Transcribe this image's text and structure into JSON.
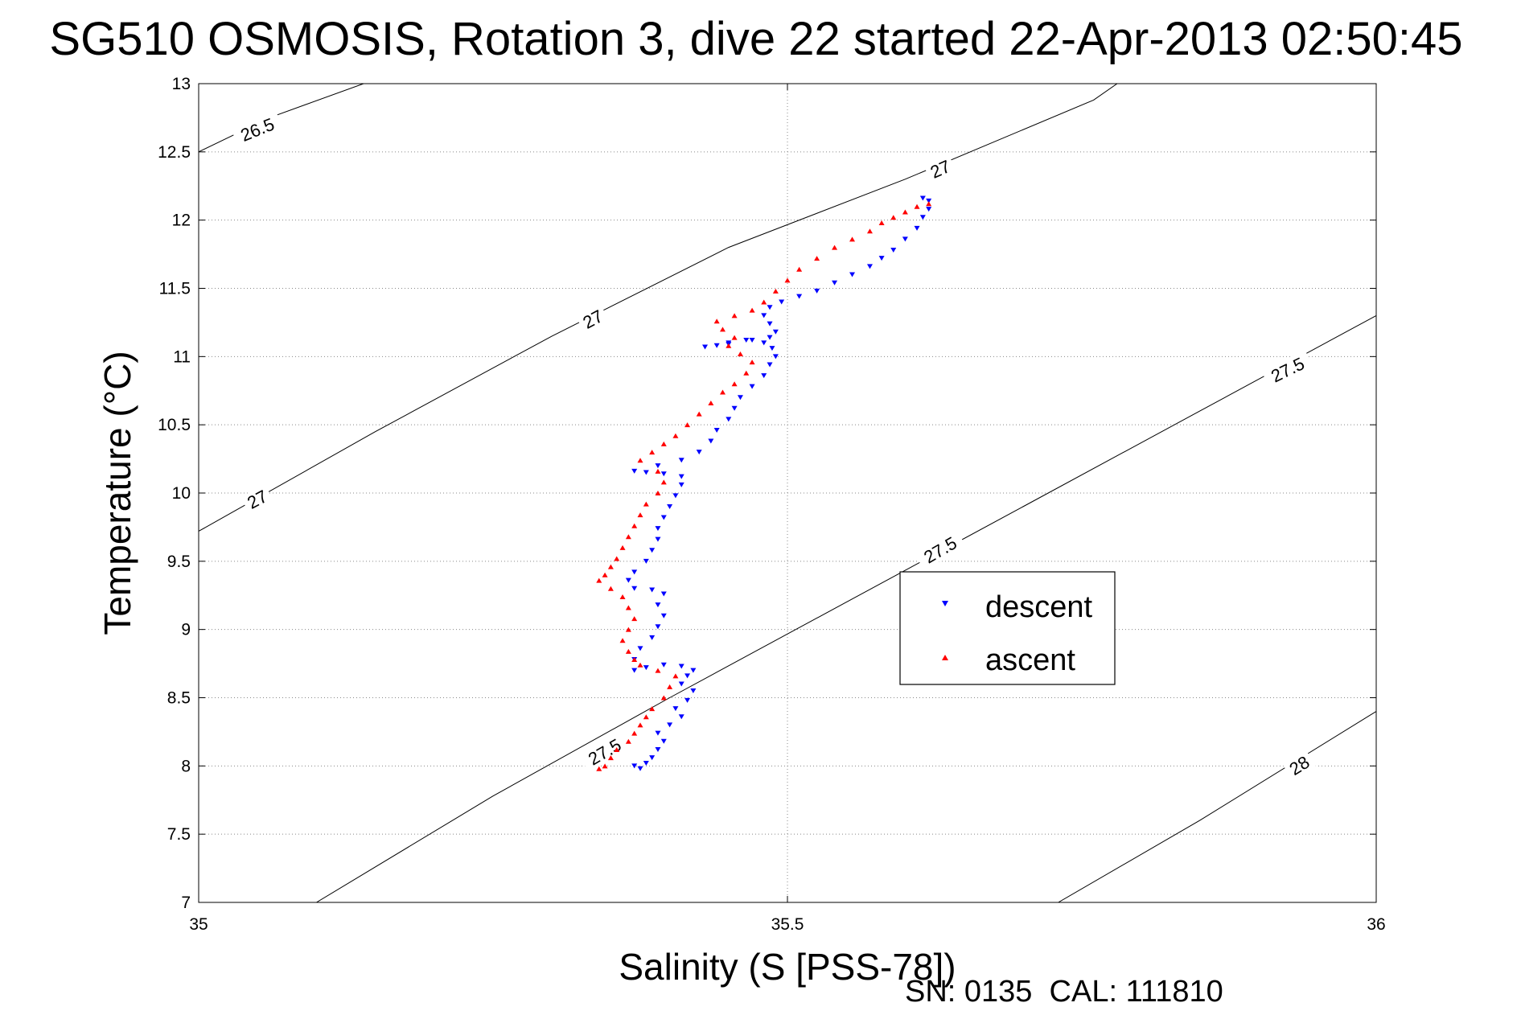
{
  "chart_data": {
    "type": "scatter",
    "title": "SG510 OSMOSIS, Rotation 3, dive 22 started 22-Apr-2013 02:50:45",
    "xlabel": "Salinity (S [PSS-78])",
    "ylabel": "Temperature (°C)",
    "xlim": [
      35,
      36
    ],
    "ylim": [
      7,
      13
    ],
    "xticks": [
      35,
      35.5,
      36
    ],
    "xtick_labels": [
      "35",
      "35.5",
      "36"
    ],
    "yticks": [
      7,
      7.5,
      8,
      8.5,
      9,
      9.5,
      10,
      10.5,
      11,
      11.5,
      12,
      12.5,
      13
    ],
    "ytick_labels": [
      "7",
      "7.5",
      "8",
      "8.5",
      "9",
      "9.5",
      "10",
      "10.5",
      "11",
      "11.5",
      "12",
      "12.5",
      "13"
    ],
    "grid": true,
    "legend_position": "lower-right",
    "footer": "SN: 0135  CAL: 111810",
    "series": [
      {
        "name": "descent",
        "color": "#0000ff",
        "marker": "triangle-down",
        "points": [
          [
            35.375,
            7.98
          ],
          [
            35.37,
            8.0
          ],
          [
            35.38,
            8.02
          ],
          [
            35.385,
            8.06
          ],
          [
            35.39,
            8.12
          ],
          [
            35.395,
            8.18
          ],
          [
            35.39,
            8.24
          ],
          [
            35.4,
            8.3
          ],
          [
            35.41,
            8.36
          ],
          [
            35.405,
            8.42
          ],
          [
            35.415,
            8.48
          ],
          [
            35.42,
            8.55
          ],
          [
            35.41,
            8.6
          ],
          [
            35.415,
            8.66
          ],
          [
            35.42,
            8.7
          ],
          [
            35.41,
            8.73
          ],
          [
            35.395,
            8.74
          ],
          [
            35.38,
            8.72
          ],
          [
            35.37,
            8.7
          ],
          [
            35.37,
            8.78
          ],
          [
            35.375,
            8.86
          ],
          [
            35.385,
            8.94
          ],
          [
            35.39,
            9.02
          ],
          [
            35.395,
            9.1
          ],
          [
            35.39,
            9.18
          ],
          [
            35.395,
            9.26
          ],
          [
            35.385,
            9.29
          ],
          [
            35.37,
            9.3
          ],
          [
            35.365,
            9.36
          ],
          [
            35.37,
            9.42
          ],
          [
            35.38,
            9.5
          ],
          [
            35.385,
            9.58
          ],
          [
            35.39,
            9.66
          ],
          [
            35.39,
            9.74
          ],
          [
            35.395,
            9.82
          ],
          [
            35.4,
            9.9
          ],
          [
            35.405,
            9.98
          ],
          [
            35.41,
            10.06
          ],
          [
            35.41,
            10.12
          ],
          [
            35.395,
            10.14
          ],
          [
            35.38,
            10.15
          ],
          [
            35.37,
            10.16
          ],
          [
            35.39,
            10.2
          ],
          [
            35.41,
            10.24
          ],
          [
            35.425,
            10.3
          ],
          [
            35.435,
            10.38
          ],
          [
            35.44,
            10.46
          ],
          [
            35.45,
            10.54
          ],
          [
            35.455,
            10.62
          ],
          [
            35.46,
            10.7
          ],
          [
            35.47,
            10.78
          ],
          [
            35.48,
            10.86
          ],
          [
            35.485,
            10.94
          ],
          [
            35.49,
            11.0
          ],
          [
            35.487,
            11.06
          ],
          [
            35.48,
            11.1
          ],
          [
            35.465,
            11.12
          ],
          [
            35.45,
            11.1
          ],
          [
            35.44,
            11.08
          ],
          [
            35.43,
            11.07
          ],
          [
            35.45,
            11.09
          ],
          [
            35.47,
            11.12
          ],
          [
            35.485,
            11.14
          ],
          [
            35.49,
            11.18
          ],
          [
            35.485,
            11.24
          ],
          [
            35.48,
            11.3
          ],
          [
            35.485,
            11.36
          ],
          [
            35.495,
            11.4
          ],
          [
            35.51,
            11.44
          ],
          [
            35.525,
            11.48
          ],
          [
            35.54,
            11.54
          ],
          [
            35.555,
            11.6
          ],
          [
            35.57,
            11.66
          ],
          [
            35.58,
            11.72
          ],
          [
            35.59,
            11.78
          ],
          [
            35.6,
            11.86
          ],
          [
            35.61,
            11.94
          ],
          [
            35.615,
            12.02
          ],
          [
            35.62,
            12.08
          ],
          [
            35.62,
            12.14
          ],
          [
            35.615,
            12.16
          ]
        ]
      },
      {
        "name": "ascent",
        "color": "#ff0000",
        "marker": "triangle-up",
        "points": [
          [
            35.62,
            12.12
          ],
          [
            35.61,
            12.1
          ],
          [
            35.6,
            12.06
          ],
          [
            35.59,
            12.02
          ],
          [
            35.58,
            11.98
          ],
          [
            35.57,
            11.92
          ],
          [
            35.555,
            11.86
          ],
          [
            35.54,
            11.8
          ],
          [
            35.525,
            11.72
          ],
          [
            35.51,
            11.64
          ],
          [
            35.5,
            11.56
          ],
          [
            35.49,
            11.48
          ],
          [
            35.48,
            11.4
          ],
          [
            35.47,
            11.34
          ],
          [
            35.455,
            11.3
          ],
          [
            35.44,
            11.26
          ],
          [
            35.445,
            11.2
          ],
          [
            35.455,
            11.14
          ],
          [
            35.45,
            11.08
          ],
          [
            35.46,
            11.02
          ],
          [
            35.47,
            10.96
          ],
          [
            35.465,
            10.88
          ],
          [
            35.455,
            10.8
          ],
          [
            35.445,
            10.74
          ],
          [
            35.435,
            10.66
          ],
          [
            35.425,
            10.58
          ],
          [
            35.415,
            10.5
          ],
          [
            35.405,
            10.42
          ],
          [
            35.395,
            10.36
          ],
          [
            35.385,
            10.3
          ],
          [
            35.375,
            10.24
          ],
          [
            35.39,
            10.16
          ],
          [
            35.395,
            10.08
          ],
          [
            35.39,
            10.0
          ],
          [
            35.38,
            9.92
          ],
          [
            35.375,
            9.84
          ],
          [
            35.37,
            9.76
          ],
          [
            35.365,
            9.68
          ],
          [
            35.36,
            9.6
          ],
          [
            35.355,
            9.52
          ],
          [
            35.35,
            9.46
          ],
          [
            35.345,
            9.4
          ],
          [
            35.34,
            9.36
          ],
          [
            35.35,
            9.3
          ],
          [
            35.36,
            9.24
          ],
          [
            35.365,
            9.16
          ],
          [
            35.37,
            9.08
          ],
          [
            35.365,
            9.0
          ],
          [
            35.36,
            8.92
          ],
          [
            35.365,
            8.84
          ],
          [
            35.37,
            8.78
          ],
          [
            35.375,
            8.74
          ],
          [
            35.39,
            8.7
          ],
          [
            35.405,
            8.66
          ],
          [
            35.4,
            8.58
          ],
          [
            35.395,
            8.5
          ],
          [
            35.385,
            8.42
          ],
          [
            35.38,
            8.36
          ],
          [
            35.375,
            8.3
          ],
          [
            35.37,
            8.24
          ],
          [
            35.365,
            8.18
          ],
          [
            35.355,
            8.12
          ],
          [
            35.35,
            8.06
          ],
          [
            35.345,
            8.0
          ],
          [
            35.34,
            7.98
          ]
        ]
      }
    ],
    "contours": [
      {
        "level": "26.5",
        "points": [
          [
            35.0,
            12.5
          ],
          [
            35.06,
            12.75
          ],
          [
            35.14,
            13.0
          ]
        ],
        "labels": [
          {
            "text": "26.5",
            "x": 35.05,
            "y": 12.66,
            "angle": -22
          }
        ]
      },
      {
        "level": "27",
        "points": [
          [
            35.0,
            9.72
          ],
          [
            35.15,
            10.45
          ],
          [
            35.3,
            11.15
          ],
          [
            35.45,
            11.8
          ],
          [
            35.6,
            12.3
          ],
          [
            35.76,
            12.88
          ],
          [
            35.78,
            13.0
          ]
        ],
        "labels": [
          {
            "text": "27",
            "x": 35.05,
            "y": 9.95,
            "angle": -28
          },
          {
            "text": "27",
            "x": 35.335,
            "y": 11.27,
            "angle": -28
          },
          {
            "text": "27",
            "x": 35.63,
            "y": 12.37,
            "angle": -24
          }
        ]
      },
      {
        "level": "27.5",
        "points": [
          [
            35.1,
            7.0
          ],
          [
            35.25,
            7.78
          ],
          [
            35.4,
            8.5
          ],
          [
            35.55,
            9.2
          ],
          [
            35.7,
            9.9
          ],
          [
            35.85,
            10.6
          ],
          [
            36.0,
            11.3
          ]
        ],
        "labels": [
          {
            "text": "27.5",
            "x": 35.345,
            "y": 8.1,
            "angle": -30
          },
          {
            "text": "27.5",
            "x": 35.63,
            "y": 9.58,
            "angle": -30
          },
          {
            "text": "27.5",
            "x": 35.925,
            "y": 10.9,
            "angle": -26
          }
        ]
      },
      {
        "level": "28",
        "points": [
          [
            35.73,
            7.0
          ],
          [
            35.85,
            7.6
          ],
          [
            36.0,
            8.4
          ]
        ],
        "labels": [
          {
            "text": "28",
            "x": 35.935,
            "y": 8.0,
            "angle": -32
          }
        ]
      }
    ]
  }
}
